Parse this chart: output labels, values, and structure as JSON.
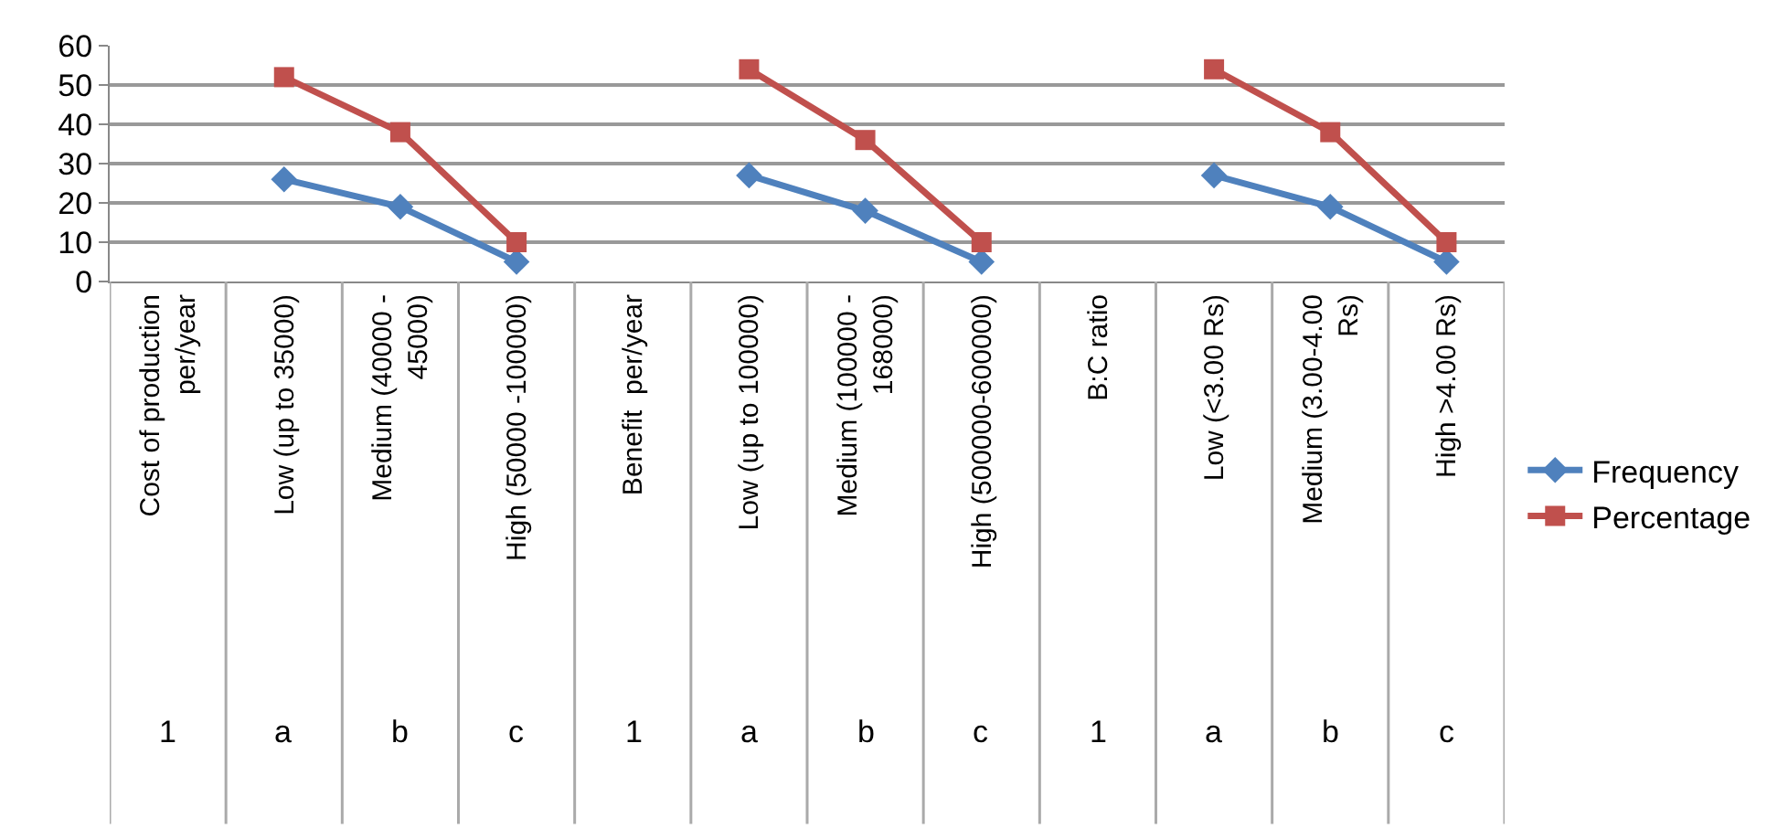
{
  "chart_data": {
    "type": "line",
    "categories": [
      "Cost of production per/year",
      "Low (up to 35000)",
      "Medium (40000 - 45000)",
      "High (50000 -100000)",
      "Benefit  per/year",
      "Low (up to 100000)",
      "Medium (100000 - 168000)",
      "High (500000-600000)",
      "B:C ratio",
      "Low (<3.00 Rs)",
      "Medium (3.00-4.00 Rs)",
      "High >4.00 Rs)"
    ],
    "series": [
      {
        "name": "Frequency",
        "color": "#4f81bd",
        "marker": "diamond",
        "values": [
          null,
          26,
          19,
          5,
          null,
          27,
          18,
          5,
          null,
          27,
          19,
          5
        ]
      },
      {
        "name": "Percentage",
        "color": "#c0504d",
        "marker": "square",
        "values": [
          null,
          52,
          38,
          10,
          null,
          54,
          36,
          10,
          null,
          54,
          38,
          10
        ]
      }
    ],
    "annotations": [
      "1",
      "a",
      "b",
      "c",
      "1",
      "a",
      "b",
      "c",
      "1",
      "a",
      "b",
      "c"
    ],
    "ylim": [
      0,
      60
    ],
    "yticks": [
      0,
      10,
      20,
      30,
      40,
      50,
      60
    ],
    "grid": "y",
    "legend": "right",
    "line_style": "solid"
  }
}
